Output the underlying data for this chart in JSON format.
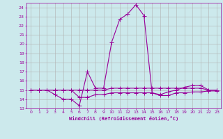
{
  "xlabel": "Windchill (Refroidissement éolien,°C)",
  "background_color": "#cce9ec",
  "grid_color": "#b0b0b0",
  "line_color": "#990099",
  "xlim": [
    -0.5,
    23.5
  ],
  "ylim": [
    13,
    24.5
  ],
  "yticks": [
    13,
    14,
    15,
    16,
    17,
    18,
    19,
    20,
    21,
    22,
    23,
    24
  ],
  "xticks": [
    0,
    1,
    2,
    3,
    4,
    5,
    6,
    7,
    8,
    9,
    10,
    11,
    12,
    13,
    14,
    15,
    16,
    17,
    18,
    19,
    20,
    21,
    22,
    23
  ],
  "series1_x": [
    0,
    1,
    2,
    3,
    4,
    5,
    6,
    7,
    8,
    9,
    10,
    11,
    12,
    13,
    14,
    15,
    16,
    17,
    18,
    19,
    20,
    21,
    22,
    23
  ],
  "series1_y": [
    15,
    15,
    15,
    14.5,
    14.0,
    14.0,
    13.3,
    17.0,
    15.2,
    15.2,
    20.2,
    22.7,
    23.3,
    24.3,
    23.1,
    14.7,
    14.5,
    14.8,
    15.0,
    15.3,
    15.5,
    15.5,
    15.0,
    15.0
  ],
  "series2_x": [
    0,
    1,
    2,
    3,
    4,
    5,
    6,
    7,
    8,
    9,
    10,
    11,
    12,
    13,
    14,
    15,
    16,
    17,
    18,
    19,
    20,
    21,
    22,
    23
  ],
  "series2_y": [
    15,
    15,
    15,
    15,
    15,
    15,
    15,
    15,
    15,
    15,
    15.2,
    15.2,
    15.2,
    15.2,
    15.2,
    15.2,
    15.2,
    15.2,
    15.2,
    15.2,
    15.2,
    15.2,
    15,
    15
  ],
  "series3_x": [
    0,
    1,
    2,
    3,
    4,
    5,
    6,
    7,
    8,
    9,
    10,
    11,
    12,
    13,
    14,
    15,
    16,
    17,
    18,
    19,
    20,
    21,
    22,
    23
  ],
  "series3_y": [
    15,
    15,
    15,
    15,
    15,
    15,
    14.2,
    14.2,
    14.5,
    14.5,
    14.7,
    14.7,
    14.7,
    14.7,
    14.7,
    14.7,
    14.4,
    14.4,
    14.7,
    14.7,
    14.8,
    14.8,
    14.9,
    14.9
  ],
  "marker": "+",
  "markersize": 3,
  "linewidth": 0.8
}
